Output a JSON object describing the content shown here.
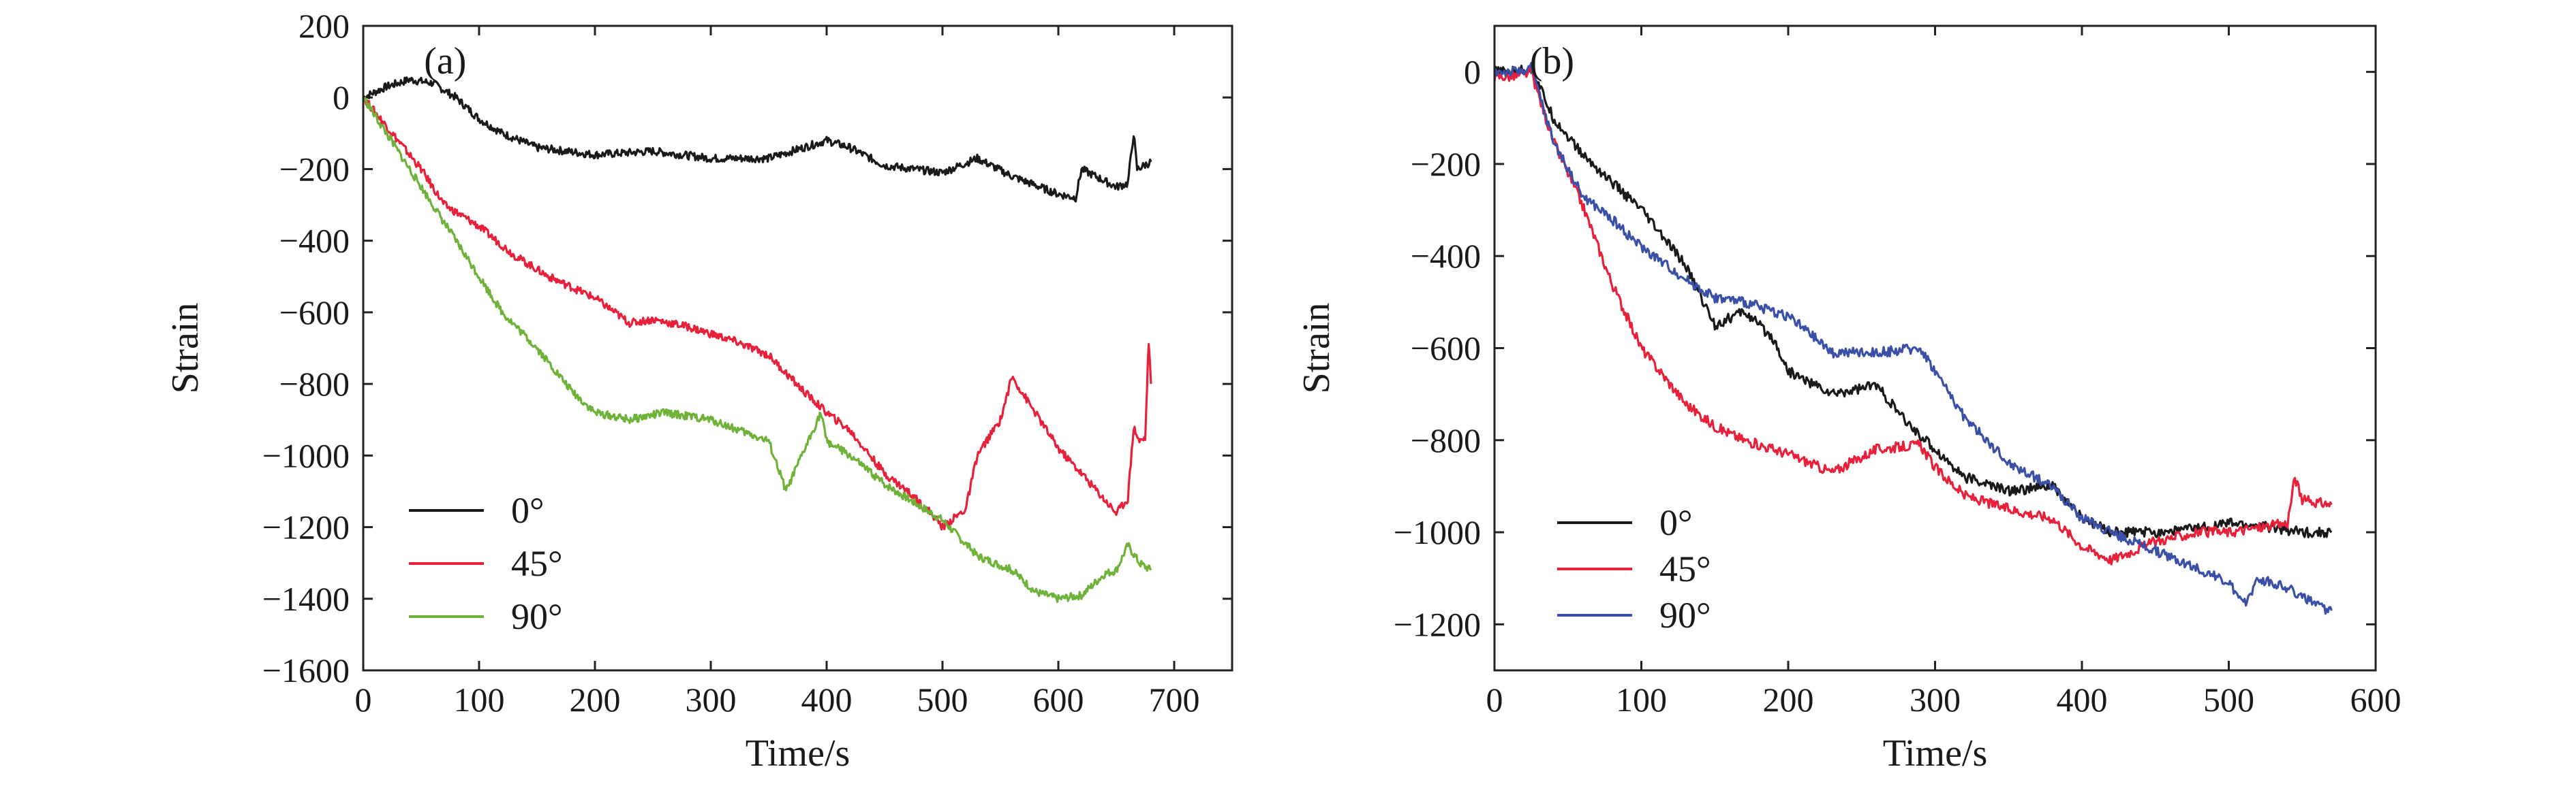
{
  "colors": {
    "black": "#1a1a1a",
    "red": "#e8203a",
    "green": "#6fb23a",
    "blue": "#3a4fa8"
  },
  "chart_data": [
    {
      "type": "line",
      "panel": "(a)",
      "xlabel": "Time/s",
      "ylabel": "Strain",
      "xlim": [
        0,
        750
      ],
      "ylim": [
        -1600,
        200
      ],
      "xticks": [
        0,
        100,
        200,
        300,
        400,
        500,
        600,
        700
      ],
      "yticks": [
        200,
        0,
        -200,
        -400,
        -600,
        -800,
        -1000,
        -1200,
        -1400,
        -1600
      ],
      "xtick_labels": [
        "0",
        "100",
        "200",
        "300",
        "400",
        "500",
        "600",
        "700"
      ],
      "ytick_labels": [
        "200",
        "0",
        "−200",
        "−400",
        "−600",
        "−800",
        "−1000",
        "−1200",
        "−1400",
        "−1600"
      ],
      "legend": {
        "position": "lower-left",
        "entries": [
          "0°",
          "45°",
          "90°"
        ]
      },
      "series": [
        {
          "name": "0°",
          "color": "#1a1a1a",
          "x": [
            0,
            20,
            40,
            60,
            80,
            100,
            120,
            150,
            200,
            250,
            300,
            350,
            380,
            400,
            420,
            450,
            500,
            530,
            560,
            600,
            615,
            620,
            650,
            660,
            665,
            668,
            680
          ],
          "y": [
            0,
            30,
            50,
            40,
            0,
            -60,
            -100,
            -140,
            -160,
            -150,
            -170,
            -170,
            -140,
            -120,
            -140,
            -190,
            -210,
            -170,
            -220,
            -270,
            -280,
            -200,
            -250,
            -240,
            -100,
            -200,
            -180
          ]
        },
        {
          "name": "45°",
          "color": "#e8203a",
          "x": [
            0,
            20,
            50,
            70,
            100,
            130,
            160,
            200,
            230,
            250,
            280,
            320,
            350,
            380,
            400,
            420,
            450,
            470,
            490,
            500,
            520,
            530,
            550,
            560,
            580,
            600,
            620,
            650,
            660,
            665,
            670,
            675,
            678,
            680
          ],
          "y": [
            0,
            -80,
            -200,
            -300,
            -360,
            -440,
            -500,
            -560,
            -630,
            -620,
            -640,
            -680,
            -720,
            -820,
            -880,
            -930,
            -1050,
            -1100,
            -1160,
            -1200,
            -1150,
            -1000,
            -900,
            -780,
            -880,
            -980,
            -1050,
            -1160,
            -1120,
            -920,
            -960,
            -950,
            -680,
            -800
          ]
        },
        {
          "name": "90°",
          "color": "#6fb23a",
          "x": [
            0,
            20,
            50,
            80,
            100,
            120,
            150,
            180,
            200,
            230,
            260,
            300,
            350,
            365,
            380,
            395,
            400,
            420,
            450,
            480,
            500,
            530,
            560,
            580,
            600,
            620,
            640,
            650,
            660,
            670,
            680
          ],
          "y": [
            0,
            -100,
            -250,
            -400,
            -500,
            -600,
            -700,
            -820,
            -880,
            -900,
            -880,
            -900,
            -960,
            -1100,
            -990,
            -880,
            -960,
            -1000,
            -1080,
            -1140,
            -1180,
            -1280,
            -1320,
            -1380,
            -1400,
            -1390,
            -1330,
            -1320,
            -1250,
            -1300,
            -1320
          ]
        }
      ]
    },
    {
      "type": "line",
      "panel": "(b)",
      "xlabel": "Time/s",
      "ylabel": "Strain",
      "xlim": [
        0,
        600
      ],
      "ylim": [
        -1300,
        100
      ],
      "xticks": [
        0,
        100,
        200,
        300,
        400,
        500,
        600
      ],
      "yticks": [
        0,
        -200,
        -400,
        -600,
        -800,
        -1000,
        -1200
      ],
      "xtick_labels": [
        "0",
        "100",
        "200",
        "300",
        "400",
        "500",
        "600"
      ],
      "ytick_labels": [
        "0",
        "−200",
        "−400",
        "−600",
        "−800",
        "−1000",
        "−1200"
      ],
      "legend": {
        "position": "lower-left",
        "entries": [
          "0°",
          "45°",
          "90°"
        ]
      },
      "series": [
        {
          "name": "0°",
          "color": "#1a1a1a",
          "x": [
            0,
            15,
            25,
            40,
            60,
            80,
            100,
            130,
            150,
            170,
            190,
            200,
            230,
            260,
            280,
            300,
            320,
            350,
            380,
            400,
            420,
            450,
            480,
            500,
            530,
            550,
            570
          ],
          "y": [
            0,
            0,
            10,
            -100,
            -180,
            -240,
            -300,
            -420,
            -550,
            -520,
            -580,
            -650,
            -700,
            -680,
            -760,
            -820,
            -880,
            -910,
            -900,
            -970,
            -1000,
            -1000,
            -990,
            -980,
            -990,
            -1000,
            -1000
          ]
        },
        {
          "name": "45°",
          "color": "#e8203a",
          "x": [
            0,
            15,
            25,
            40,
            60,
            80,
            100,
            130,
            150,
            170,
            200,
            230,
            260,
            290,
            300,
            320,
            350,
            380,
            400,
            420,
            450,
            480,
            500,
            520,
            540,
            545,
            550,
            570
          ],
          "y": [
            -10,
            -10,
            0,
            -150,
            -290,
            -460,
            -600,
            -720,
            -770,
            -800,
            -830,
            -870,
            -820,
            -810,
            -860,
            -920,
            -950,
            -970,
            -1030,
            -1060,
            -1020,
            -1000,
            -1000,
            -990,
            -980,
            -880,
            -930,
            -940
          ]
        },
        {
          "name": "90°",
          "color": "#3a4fa8",
          "x": [
            0,
            15,
            25,
            40,
            60,
            80,
            100,
            130,
            150,
            170,
            200,
            230,
            260,
            290,
            300,
            320,
            350,
            380,
            400,
            420,
            450,
            480,
            500,
            510,
            520,
            540,
            560,
            570
          ],
          "y": [
            0,
            0,
            10,
            -150,
            -270,
            -320,
            -380,
            -450,
            -490,
            -500,
            -530,
            -610,
            -610,
            -600,
            -650,
            -750,
            -850,
            -900,
            -970,
            -1000,
            -1040,
            -1080,
            -1110,
            -1160,
            -1100,
            -1120,
            -1160,
            -1170
          ]
        }
      ]
    }
  ]
}
